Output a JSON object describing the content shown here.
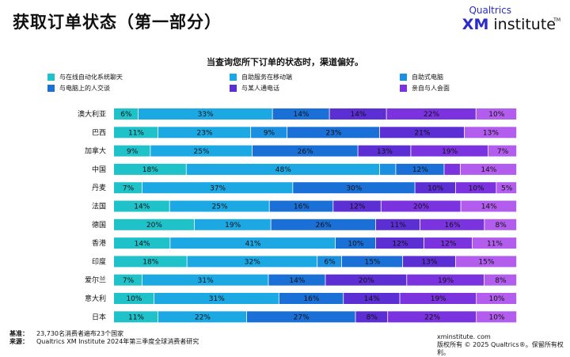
{
  "page_title": "获取订单状态（第一部分）",
  "logo": {
    "brand": "Qualtrics",
    "xm": "XM",
    "name": "institute",
    "tm": "TM"
  },
  "footer": {
    "base_label": "基准：",
    "base_text": "23,730名消费者遍布23个国家",
    "source_label": "来源：",
    "source_text": "Qualtrics XM Institute 2024年第三季度全球消费者研究",
    "site": "xminstitute. com",
    "copyright": "版权所有 © 2025 Qualtrics®。保留所有权利。"
  },
  "chart_data": {
    "type": "bar",
    "orientation": "horizontal",
    "stacked": true,
    "title": "当查询您所下订单的状态时，渠道偏好。",
    "legend_position": "top",
    "xlim": [
      0,
      100
    ],
    "categories": [
      "澳大利亚",
      "巴西",
      "加拿大",
      "中国",
      "丹麦",
      "法国",
      "德国",
      "香港",
      "印度",
      "爱尔兰",
      "意大利",
      "日本"
    ],
    "series": [
      {
        "name": "与在线自动化系统聊天",
        "color": "#1fc2c9",
        "values": [
          6,
          11,
          9,
          18,
          7,
          14,
          20,
          14,
          18,
          7,
          10,
          11
        ]
      },
      {
        "name": "自助服务在移动端",
        "color": "#1ca8e3",
        "values": [
          33,
          23,
          25,
          48,
          37,
          25,
          19,
          41,
          32,
          31,
          31,
          22
        ]
      },
      {
        "name": "自助式电脑",
        "color": "#1b8fe0",
        "values": [
          0,
          9,
          0,
          4,
          0,
          0,
          0,
          0,
          6,
          0,
          0,
          0
        ]
      },
      {
        "name": "与电脑上的人交谈",
        "color": "#1a70d6",
        "values": [
          14,
          23,
          26,
          12,
          30,
          16,
          26,
          10,
          15,
          14,
          16,
          27
        ]
      },
      {
        "name": "与某人通电话",
        "color": "#5b2fd4",
        "values": [
          14,
          21,
          13,
          0,
          10,
          12,
          11,
          12,
          13,
          20,
          14,
          8
        ]
      },
      {
        "name": "亲自与人会面",
        "color": "#7a33de",
        "values": [
          22,
          0,
          19,
          4,
          10,
          20,
          16,
          12,
          0,
          19,
          19,
          22
        ]
      },
      {
        "name": "",
        "color": "#b25ded",
        "values": [
          10,
          13,
          7,
          14,
          5,
          14,
          8,
          11,
          15,
          8,
          10,
          10
        ]
      }
    ],
    "labels": [
      [
        "6%",
        "33%",
        "",
        "14%",
        "14%",
        "22%",
        "10%"
      ],
      [
        "11%",
        "23%",
        "9%",
        "23%",
        "21%",
        "",
        "13%"
      ],
      [
        "9%",
        "25%",
        "",
        "26%",
        "13%",
        "19%",
        "7%"
      ],
      [
        "18%",
        "48%",
        "",
        "12%",
        "",
        "",
        "14%"
      ],
      [
        "7%",
        "37%",
        "",
        "30%",
        "10%",
        "10%",
        "5%"
      ],
      [
        "14%",
        "25%",
        "",
        "16%",
        "12%",
        "20%",
        "14%"
      ],
      [
        "20%",
        "19%",
        "",
        "26%",
        "11%",
        "16%",
        "8%"
      ],
      [
        "14%",
        "41%",
        "",
        "10%",
        "12%",
        "12%",
        "11%"
      ],
      [
        "18%",
        "32%",
        "6%",
        "15%",
        "13%",
        "",
        "15%"
      ],
      [
        "7%",
        "31%",
        "",
        "14%",
        "20%",
        "19%",
        "8%"
      ],
      [
        "10%",
        "31%",
        "",
        "16%",
        "14%",
        "19%",
        "10%"
      ],
      [
        "11%",
        "22%",
        "",
        "27%",
        "8%",
        "22%",
        "10%"
      ]
    ]
  }
}
